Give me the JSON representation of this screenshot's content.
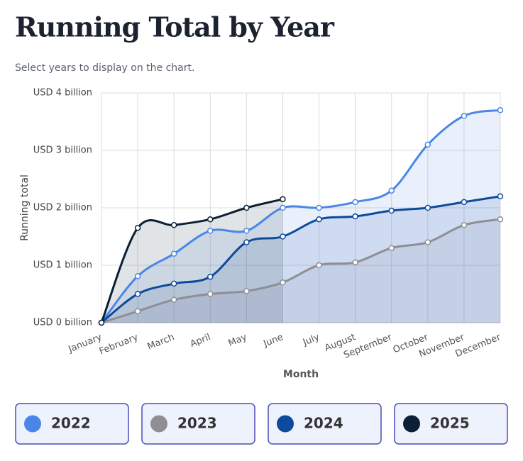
{
  "chart_data": {
    "type": "area",
    "title": "Running Total by Year",
    "subtitle": "Select years to display on the chart.",
    "x_label": "Month",
    "y_label": "Running total",
    "categories": [
      "January",
      "February",
      "March",
      "April",
      "May",
      "June",
      "July",
      "August",
      "September",
      "October",
      "November",
      "December"
    ],
    "series": [
      {
        "name": "2022",
        "color": "#4a86e8",
        "values": [
          0,
          0.81,
          1.2,
          1.6,
          1.6,
          2.0,
          2.0,
          2.1,
          2.3,
          3.1,
          3.6,
          3.7
        ]
      },
      {
        "name": "2023",
        "color": "#8e8e95",
        "values": [
          0,
          0.2,
          0.4,
          0.5,
          0.55,
          0.7,
          1.0,
          1.05,
          1.3,
          1.4,
          1.7,
          1.8
        ]
      },
      {
        "name": "2024",
        "color": "#0d4a9c",
        "values": [
          0,
          0.5,
          0.68,
          0.8,
          1.4,
          1.5,
          1.8,
          1.85,
          1.95,
          2.0,
          2.1,
          2.2
        ]
      },
      {
        "name": "2025",
        "color": "#0b1f35",
        "values": [
          0,
          1.65,
          1.7,
          1.8,
          2.0,
          2.15,
          null,
          null,
          null,
          null,
          null,
          null
        ]
      }
    ],
    "ylim": [
      0,
      4
    ],
    "yticks": [
      {
        "value": 0,
        "label": "USD 0 billion"
      },
      {
        "value": 1,
        "label": "USD 1 billion"
      },
      {
        "value": 2,
        "label": "USD 2 billion"
      },
      {
        "value": 3,
        "label": "USD 3 billion"
      },
      {
        "value": 4,
        "label": "USD 4 billion"
      }
    ],
    "grid": true
  }
}
